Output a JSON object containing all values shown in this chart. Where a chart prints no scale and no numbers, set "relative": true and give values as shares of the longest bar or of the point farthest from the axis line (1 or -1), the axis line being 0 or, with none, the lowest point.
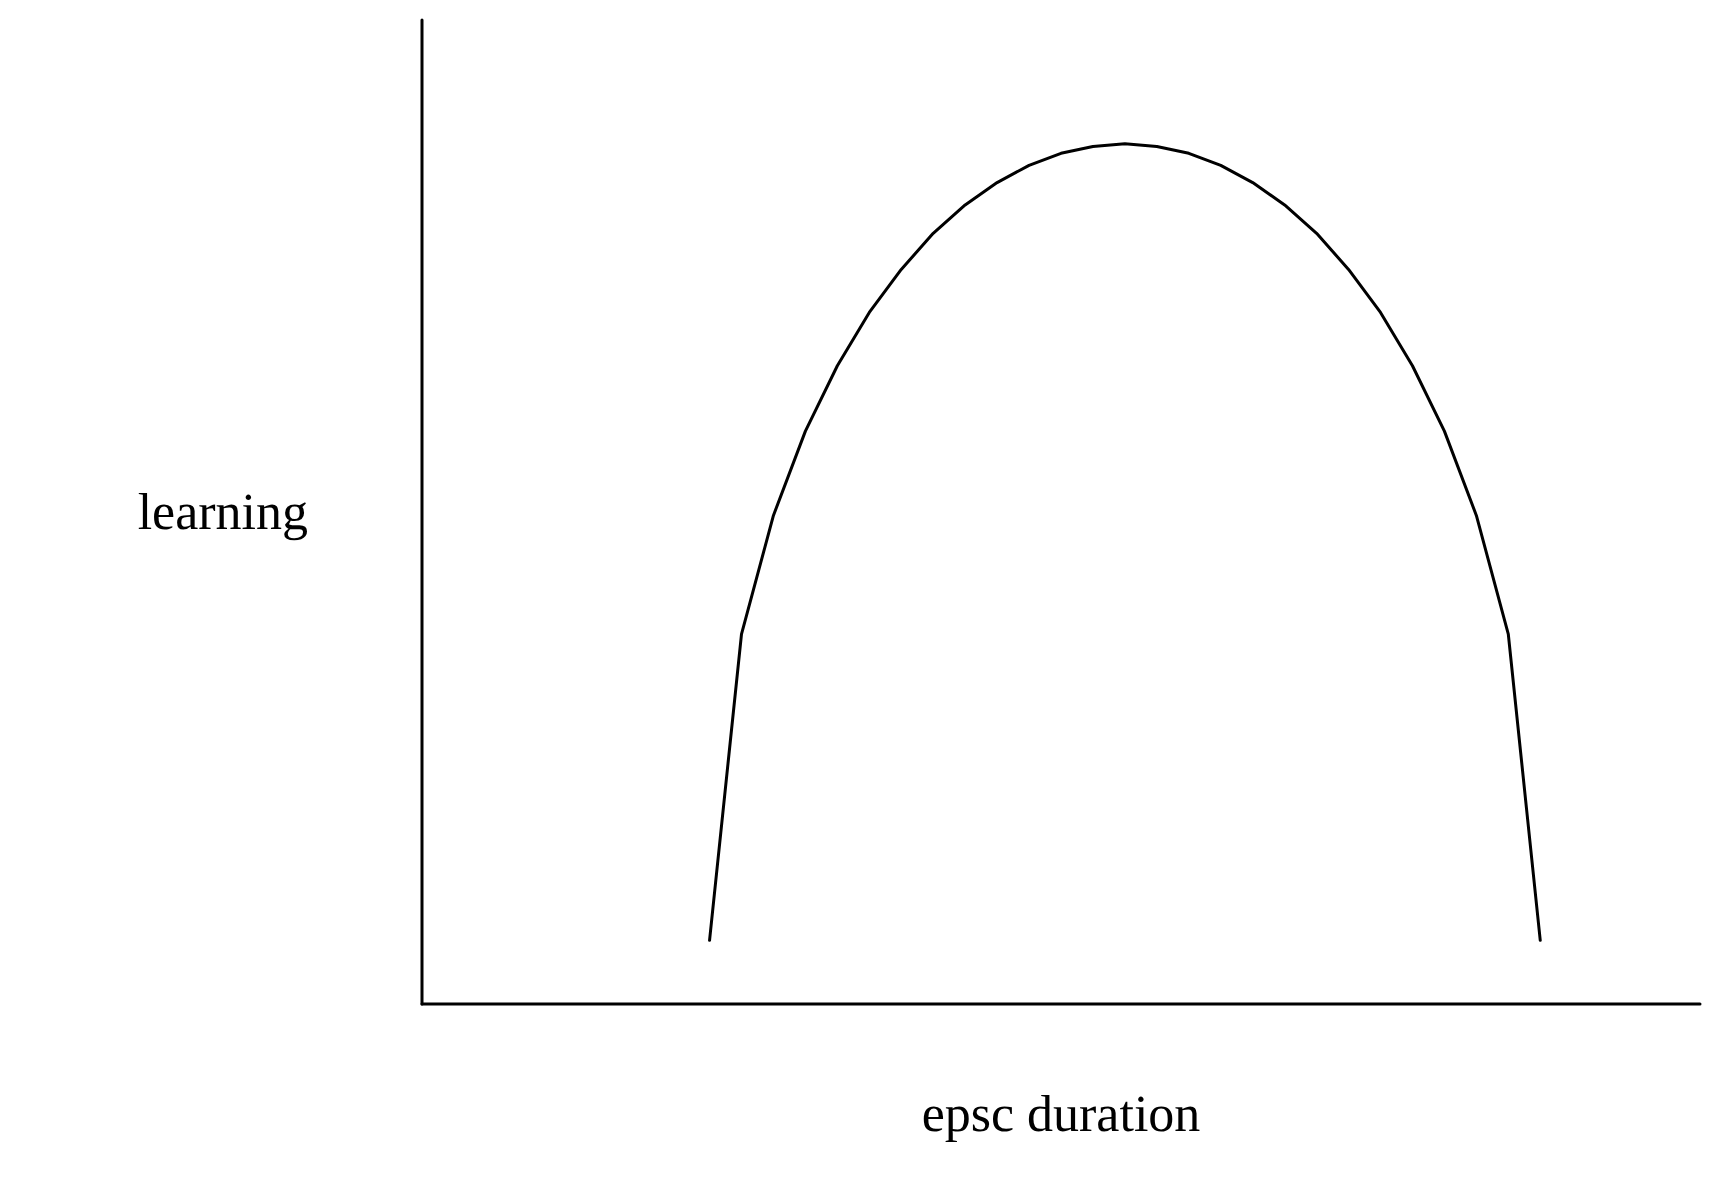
{
  "chart_data": {
    "type": "line",
    "relative": true,
    "xlabel": "epsc duration",
    "ylabel": "learning",
    "categories": [
      null,
      null,
      null,
      null,
      null,
      null,
      null,
      null,
      null,
      null,
      null,
      null,
      null,
      null,
      null,
      null,
      null,
      null,
      null,
      null,
      null,
      null,
      null,
      null,
      null,
      null,
      null,
      null,
      null,
      null,
      null,
      null,
      null,
      null,
      null,
      null,
      null,
      null,
      null,
      null,
      null
    ],
    "series": [
      {
        "color": "#000000",
        "values": [
          null,
          null,
          null,
          null,
          null,
          null,
          null,
          null,
          null,
          0.074,
          0.43,
          0.568,
          0.666,
          0.742,
          0.804,
          0.854,
          0.896,
          0.929,
          0.955,
          0.975,
          0.989,
          0.997,
          1.0,
          0.997,
          0.989,
          0.975,
          0.955,
          0.929,
          0.896,
          0.854,
          0.804,
          0.742,
          0.666,
          0.568,
          0.43,
          0.074,
          null,
          null,
          null,
          null,
          null
        ]
      }
    ],
    "grid": false,
    "marker": "none",
    "line_style": "solid"
  }
}
